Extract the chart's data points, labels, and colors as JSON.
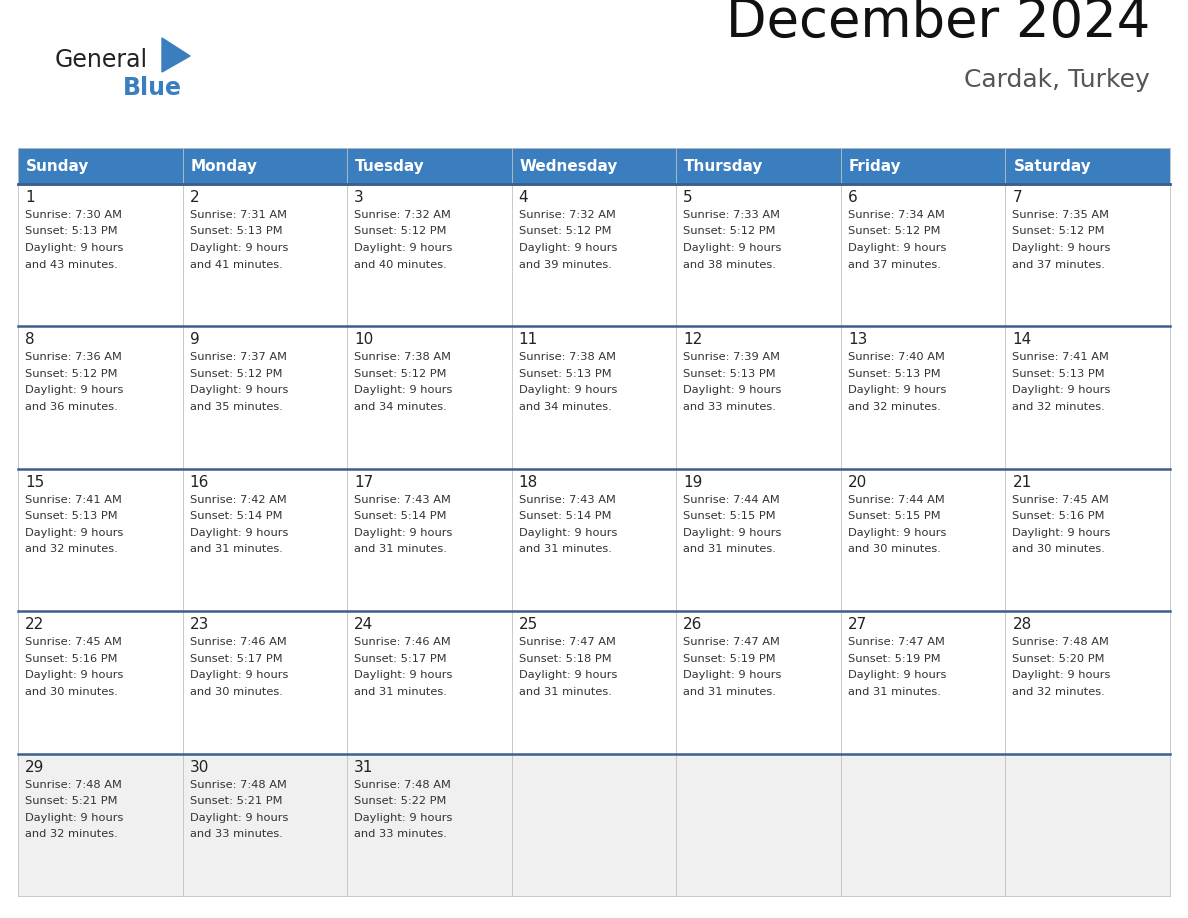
{
  "title": "December 2024",
  "subtitle": "Cardak, Turkey",
  "header_color": "#3a7ebf",
  "header_text_color": "#FFFFFF",
  "day_names": [
    "Sunday",
    "Monday",
    "Tuesday",
    "Wednesday",
    "Thursday",
    "Friday",
    "Saturday"
  ],
  "days": [
    {
      "day": 1,
      "col": 0,
      "row": 0,
      "sunrise": "7:30 AM",
      "sunset": "5:13 PM",
      "daylight": "9 hours and 43 minutes."
    },
    {
      "day": 2,
      "col": 1,
      "row": 0,
      "sunrise": "7:31 AM",
      "sunset": "5:13 PM",
      "daylight": "9 hours and 41 minutes."
    },
    {
      "day": 3,
      "col": 2,
      "row": 0,
      "sunrise": "7:32 AM",
      "sunset": "5:12 PM",
      "daylight": "9 hours and 40 minutes."
    },
    {
      "day": 4,
      "col": 3,
      "row": 0,
      "sunrise": "7:32 AM",
      "sunset": "5:12 PM",
      "daylight": "9 hours and 39 minutes."
    },
    {
      "day": 5,
      "col": 4,
      "row": 0,
      "sunrise": "7:33 AM",
      "sunset": "5:12 PM",
      "daylight": "9 hours and 38 minutes."
    },
    {
      "day": 6,
      "col": 5,
      "row": 0,
      "sunrise": "7:34 AM",
      "sunset": "5:12 PM",
      "daylight": "9 hours and 37 minutes."
    },
    {
      "day": 7,
      "col": 6,
      "row": 0,
      "sunrise": "7:35 AM",
      "sunset": "5:12 PM",
      "daylight": "9 hours and 37 minutes."
    },
    {
      "day": 8,
      "col": 0,
      "row": 1,
      "sunrise": "7:36 AM",
      "sunset": "5:12 PM",
      "daylight": "9 hours and 36 minutes."
    },
    {
      "day": 9,
      "col": 1,
      "row": 1,
      "sunrise": "7:37 AM",
      "sunset": "5:12 PM",
      "daylight": "9 hours and 35 minutes."
    },
    {
      "day": 10,
      "col": 2,
      "row": 1,
      "sunrise": "7:38 AM",
      "sunset": "5:12 PM",
      "daylight": "9 hours and 34 minutes."
    },
    {
      "day": 11,
      "col": 3,
      "row": 1,
      "sunrise": "7:38 AM",
      "sunset": "5:13 PM",
      "daylight": "9 hours and 34 minutes."
    },
    {
      "day": 12,
      "col": 4,
      "row": 1,
      "sunrise": "7:39 AM",
      "sunset": "5:13 PM",
      "daylight": "9 hours and 33 minutes."
    },
    {
      "day": 13,
      "col": 5,
      "row": 1,
      "sunrise": "7:40 AM",
      "sunset": "5:13 PM",
      "daylight": "9 hours and 32 minutes."
    },
    {
      "day": 14,
      "col": 6,
      "row": 1,
      "sunrise": "7:41 AM",
      "sunset": "5:13 PM",
      "daylight": "9 hours and 32 minutes."
    },
    {
      "day": 15,
      "col": 0,
      "row": 2,
      "sunrise": "7:41 AM",
      "sunset": "5:13 PM",
      "daylight": "9 hours and 32 minutes."
    },
    {
      "day": 16,
      "col": 1,
      "row": 2,
      "sunrise": "7:42 AM",
      "sunset": "5:14 PM",
      "daylight": "9 hours and 31 minutes."
    },
    {
      "day": 17,
      "col": 2,
      "row": 2,
      "sunrise": "7:43 AM",
      "sunset": "5:14 PM",
      "daylight": "9 hours and 31 minutes."
    },
    {
      "day": 18,
      "col": 3,
      "row": 2,
      "sunrise": "7:43 AM",
      "sunset": "5:14 PM",
      "daylight": "9 hours and 31 minutes."
    },
    {
      "day": 19,
      "col": 4,
      "row": 2,
      "sunrise": "7:44 AM",
      "sunset": "5:15 PM",
      "daylight": "9 hours and 31 minutes."
    },
    {
      "day": 20,
      "col": 5,
      "row": 2,
      "sunrise": "7:44 AM",
      "sunset": "5:15 PM",
      "daylight": "9 hours and 30 minutes."
    },
    {
      "day": 21,
      "col": 6,
      "row": 2,
      "sunrise": "7:45 AM",
      "sunset": "5:16 PM",
      "daylight": "9 hours and 30 minutes."
    },
    {
      "day": 22,
      "col": 0,
      "row": 3,
      "sunrise": "7:45 AM",
      "sunset": "5:16 PM",
      "daylight": "9 hours and 30 minutes."
    },
    {
      "day": 23,
      "col": 1,
      "row": 3,
      "sunrise": "7:46 AM",
      "sunset": "5:17 PM",
      "daylight": "9 hours and 30 minutes."
    },
    {
      "day": 24,
      "col": 2,
      "row": 3,
      "sunrise": "7:46 AM",
      "sunset": "5:17 PM",
      "daylight": "9 hours and 31 minutes."
    },
    {
      "day": 25,
      "col": 3,
      "row": 3,
      "sunrise": "7:47 AM",
      "sunset": "5:18 PM",
      "daylight": "9 hours and 31 minutes."
    },
    {
      "day": 26,
      "col": 4,
      "row": 3,
      "sunrise": "7:47 AM",
      "sunset": "5:19 PM",
      "daylight": "9 hours and 31 minutes."
    },
    {
      "day": 27,
      "col": 5,
      "row": 3,
      "sunrise": "7:47 AM",
      "sunset": "5:19 PM",
      "daylight": "9 hours and 31 minutes."
    },
    {
      "day": 28,
      "col": 6,
      "row": 3,
      "sunrise": "7:48 AM",
      "sunset": "5:20 PM",
      "daylight": "9 hours and 32 minutes."
    },
    {
      "day": 29,
      "col": 0,
      "row": 4,
      "sunrise": "7:48 AM",
      "sunset": "5:21 PM",
      "daylight": "9 hours and 32 minutes."
    },
    {
      "day": 30,
      "col": 1,
      "row": 4,
      "sunrise": "7:48 AM",
      "sunset": "5:21 PM",
      "daylight": "9 hours and 33 minutes."
    },
    {
      "day": 31,
      "col": 2,
      "row": 4,
      "sunrise": "7:48 AM",
      "sunset": "5:22 PM",
      "daylight": "9 hours and 33 minutes."
    }
  ],
  "bg_color": "#FFFFFF",
  "cell_bg_color": "#FFFFFF",
  "last_row_bg_color": "#F0F0F0",
  "grid_line_color": "#C0C0C0",
  "row_sep_color": "#3a5f8a",
  "text_color": "#333333",
  "day_num_color": "#222222",
  "logo_general_color": "#222222",
  "logo_blue_color": "#3a7ebf"
}
